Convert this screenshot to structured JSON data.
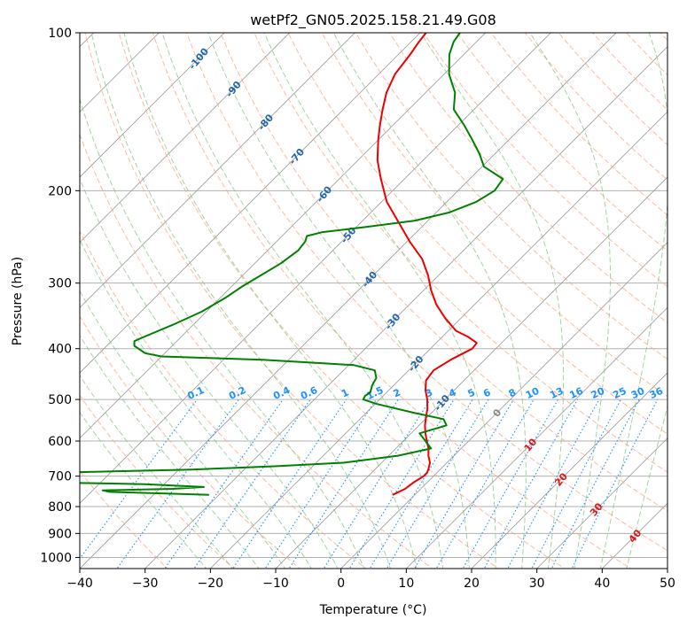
{
  "chart_data": {
    "type": "line",
    "title": "wetPf2_GN05.2025.158.21.49.G08",
    "xlabel": "Temperature (°C)",
    "ylabel": "Pressure (hPa)",
    "xlim": [
      -40,
      50
    ],
    "ylim": [
      1050,
      100
    ],
    "y_scale": "log",
    "grid": true,
    "x_ticks": [
      -40,
      -30,
      -20,
      -10,
      0,
      10,
      20,
      30,
      40,
      50
    ],
    "y_ticks": [
      1000,
      900,
      800,
      700,
      600,
      500,
      400,
      300,
      200,
      100
    ],
    "colors": {
      "temperature": "#ee0000",
      "dewpoint": "#008000",
      "isotherm": "#999999",
      "dry_adiabat": "#f4a582",
      "moist_adiabat": "#7fbf7b",
      "mixing_ratio": "#1e90ff",
      "adiabat_label": "#2166ac",
      "isotherm_label": "#d7191c"
    },
    "mixing_ratio_labels": [
      "0.1",
      "0.2",
      "0.4",
      "0.6",
      "1",
      "1.5",
      "2",
      "3",
      "4",
      "5",
      "6",
      "8",
      "10",
      "13",
      "16",
      "20",
      "25",
      "30",
      "36"
    ],
    "mixing_ratio_values": [
      0.1,
      0.2,
      0.4,
      0.6,
      1,
      1.5,
      2,
      3,
      4,
      5,
      6,
      8,
      10,
      13,
      16,
      20,
      25,
      30,
      36
    ],
    "dry_adiabat_labels": [
      "-100",
      "-90",
      "-80",
      "-70",
      "-60",
      "-50",
      "-40",
      "-30",
      "-20",
      "-10"
    ],
    "dry_adiabat_label_values": [
      -100,
      -90,
      -80,
      -70,
      -60,
      -50,
      -40,
      -30,
      -20,
      -10
    ],
    "isotherm_labels": [
      "0",
      "10",
      "20",
      "30",
      "40"
    ],
    "isotherm_label_values": [
      0,
      10,
      20,
      30,
      40
    ],
    "series": [
      {
        "name": "Temperature",
        "points": [
          [
            -3.4,
            760
          ],
          [
            -2.4,
            740
          ],
          [
            -2.1,
            720
          ],
          [
            -1.5,
            700
          ],
          [
            -1.5,
            690
          ],
          [
            -1.8,
            680
          ],
          [
            -2.6,
            660
          ],
          [
            -3.9,
            640
          ],
          [
            -5.0,
            620
          ],
          [
            -6.4,
            600
          ],
          [
            -7.8,
            580
          ],
          [
            -9.1,
            560
          ],
          [
            -10.2,
            540
          ],
          [
            -11.3,
            520
          ],
          [
            -12.7,
            500
          ],
          [
            -14.4,
            480
          ],
          [
            -15.8,
            460
          ],
          [
            -16.2,
            440
          ],
          [
            -15.2,
            420
          ],
          [
            -13.6,
            400
          ],
          [
            -13.8,
            390
          ],
          [
            -16.0,
            380
          ],
          [
            -18.8,
            370
          ],
          [
            -22.4,
            350
          ],
          [
            -25.8,
            330
          ],
          [
            -28.8,
            310
          ],
          [
            -31.6,
            290
          ],
          [
            -35.0,
            270
          ],
          [
            -39.6,
            250
          ],
          [
            -44.2,
            230
          ],
          [
            -49.2,
            210
          ],
          [
            -53.6,
            190
          ],
          [
            -57.0,
            175
          ],
          [
            -60.0,
            160
          ],
          [
            -62.0,
            150
          ],
          [
            -64.0,
            140
          ],
          [
            -66.0,
            130
          ],
          [
            -67.5,
            120
          ],
          [
            -68.2,
            110
          ],
          [
            -68.8,
            104
          ],
          [
            -69.1,
            100
          ]
        ]
      },
      {
        "name": "Dewpoint",
        "points": [
          [
            -31.5,
            760
          ],
          [
            -39.0,
            755
          ],
          [
            -47.2,
            750
          ],
          [
            -48.5,
            745
          ],
          [
            -38.0,
            740
          ],
          [
            -33.5,
            734
          ],
          [
            -43.0,
            725
          ],
          [
            -62.0,
            718
          ],
          [
            -81.0,
            710
          ],
          [
            -81.0,
            700
          ],
          [
            -60.0,
            690
          ],
          [
            -38.0,
            680
          ],
          [
            -25.5,
            670
          ],
          [
            -15.8,
            660
          ],
          [
            -8.6,
            640
          ],
          [
            -4.6,
            620
          ],
          [
            -6.6,
            600
          ],
          [
            -8.7,
            580
          ],
          [
            -5.8,
            560
          ],
          [
            -7.2,
            545
          ],
          [
            -12.7,
            530
          ],
          [
            -19.7,
            510
          ],
          [
            -22.5,
            500
          ],
          [
            -22.8,
            492
          ],
          [
            -22.5,
            485
          ],
          [
            -23.3,
            470
          ],
          [
            -23.8,
            455
          ],
          [
            -25.2,
            440
          ],
          [
            -29.2,
            430
          ],
          [
            -44.0,
            420
          ],
          [
            -60.0,
            414
          ],
          [
            -63.0,
            408
          ],
          [
            -65.8,
            395
          ],
          [
            -66.5,
            387
          ],
          [
            -65.7,
            380
          ],
          [
            -63.1,
            360
          ],
          [
            -60.7,
            340
          ],
          [
            -59.2,
            320
          ],
          [
            -58.4,
            305
          ],
          [
            -57.2,
            290
          ],
          [
            -56.0,
            275
          ],
          [
            -55.3,
            260
          ],
          [
            -55.6,
            250
          ],
          [
            -56.2,
            244
          ],
          [
            -54.5,
            240
          ],
          [
            -49.0,
            235
          ],
          [
            -42.0,
            228
          ],
          [
            -38.0,
            220
          ],
          [
            -35.5,
            210
          ],
          [
            -34.4,
            200
          ],
          [
            -34.9,
            190
          ],
          [
            -39.7,
            180
          ],
          [
            -42.4,
            170
          ],
          [
            -45.6,
            160
          ],
          [
            -49.1,
            150
          ],
          [
            -53.1,
            140
          ],
          [
            -55.5,
            130
          ],
          [
            -59.2,
            120
          ],
          [
            -62.2,
            110
          ],
          [
            -63.5,
            104
          ],
          [
            -63.9,
            100
          ]
        ]
      }
    ]
  }
}
